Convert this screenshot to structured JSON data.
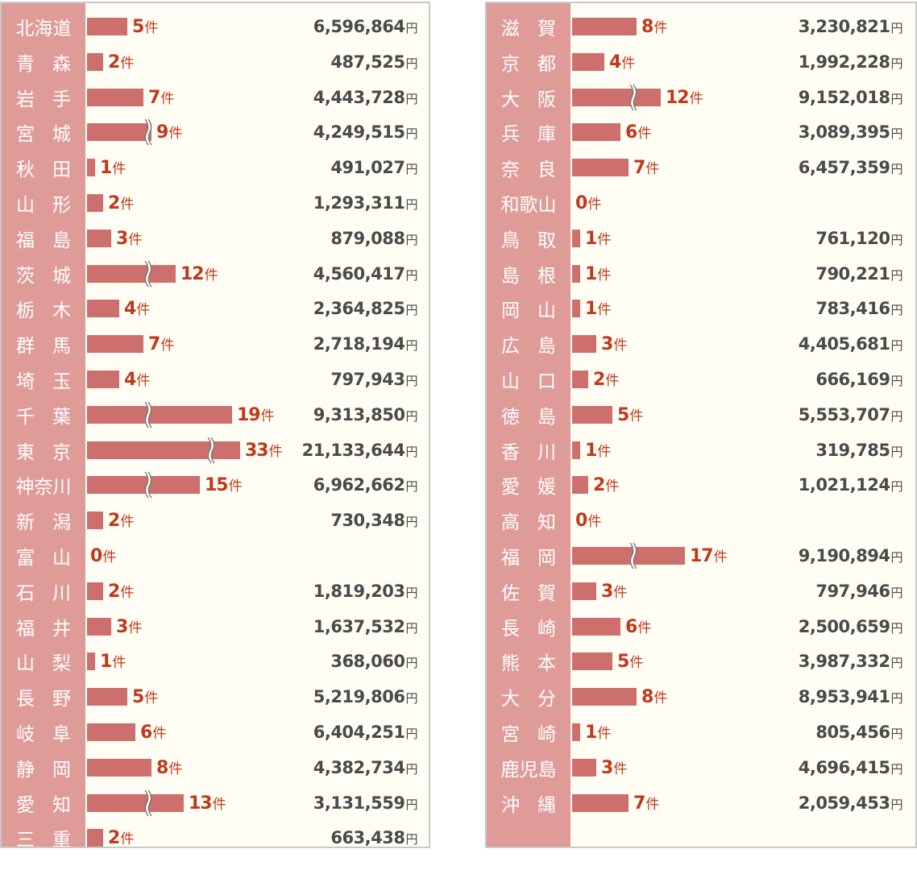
{
  "chart_data": {
    "type": "bar",
    "title": "",
    "count_unit": "件",
    "amount_unit": "円",
    "axis_break_marker": "≈",
    "panels": [
      {
        "rows": [
          {
            "pref": "北海道",
            "count": 5,
            "amount": "6,596,864",
            "broken": false
          },
          {
            "pref": "青森",
            "count": 2,
            "amount": "487,525",
            "broken": false
          },
          {
            "pref": "岩手",
            "count": 7,
            "amount": "4,443,728",
            "broken": false
          },
          {
            "pref": "宮城",
            "count": 9,
            "amount": "4,249,515",
            "broken": true
          },
          {
            "pref": "秋田",
            "count": 1,
            "amount": "491,027",
            "broken": false
          },
          {
            "pref": "山形",
            "count": 2,
            "amount": "1,293,311",
            "broken": false
          },
          {
            "pref": "福島",
            "count": 3,
            "amount": "879,088",
            "broken": false
          },
          {
            "pref": "茨城",
            "count": 12,
            "amount": "4,560,417",
            "broken": true
          },
          {
            "pref": "栃木",
            "count": 4,
            "amount": "2,364,825",
            "broken": false
          },
          {
            "pref": "群馬",
            "count": 7,
            "amount": "2,718,194",
            "broken": false
          },
          {
            "pref": "埼玉",
            "count": 4,
            "amount": "797,943",
            "broken": false
          },
          {
            "pref": "千葉",
            "count": 19,
            "amount": "9,313,850",
            "broken": true
          },
          {
            "pref": "東京",
            "count": 33,
            "amount": "21,133,644",
            "broken": true
          },
          {
            "pref": "神奈川",
            "count": 15,
            "amount": "6,962,662",
            "broken": true
          },
          {
            "pref": "新潟",
            "count": 2,
            "amount": "730,348",
            "broken": false
          },
          {
            "pref": "富山",
            "count": 0,
            "amount": "",
            "broken": false
          },
          {
            "pref": "石川",
            "count": 2,
            "amount": "1,819,203",
            "broken": false
          },
          {
            "pref": "福井",
            "count": 3,
            "amount": "1,637,532",
            "broken": false
          },
          {
            "pref": "山梨",
            "count": 1,
            "amount": "368,060",
            "broken": false
          },
          {
            "pref": "長野",
            "count": 5,
            "amount": "5,219,806",
            "broken": false
          },
          {
            "pref": "岐阜",
            "count": 6,
            "amount": "6,404,251",
            "broken": false
          },
          {
            "pref": "静岡",
            "count": 8,
            "amount": "4,382,734",
            "broken": false
          },
          {
            "pref": "愛知",
            "count": 13,
            "amount": "3,131,559",
            "broken": true
          },
          {
            "pref": "三重",
            "count": 2,
            "amount": "663,438",
            "broken": false
          }
        ]
      },
      {
        "rows": [
          {
            "pref": "滋賀",
            "count": 8,
            "amount": "3,230,821",
            "broken": false
          },
          {
            "pref": "京都",
            "count": 4,
            "amount": "1,992,228",
            "broken": false
          },
          {
            "pref": "大阪",
            "count": 12,
            "amount": "9,152,018",
            "broken": true
          },
          {
            "pref": "兵庫",
            "count": 6,
            "amount": "3,089,395",
            "broken": false
          },
          {
            "pref": "奈良",
            "count": 7,
            "amount": "6,457,359",
            "broken": false
          },
          {
            "pref": "和歌山",
            "count": 0,
            "amount": "",
            "broken": false
          },
          {
            "pref": "鳥取",
            "count": 1,
            "amount": "761,120",
            "broken": false
          },
          {
            "pref": "島根",
            "count": 1,
            "amount": "790,221",
            "broken": false
          },
          {
            "pref": "岡山",
            "count": 1,
            "amount": "783,416",
            "broken": false
          },
          {
            "pref": "広島",
            "count": 3,
            "amount": "4,405,681",
            "broken": false
          },
          {
            "pref": "山口",
            "count": 2,
            "amount": "666,169",
            "broken": false
          },
          {
            "pref": "徳島",
            "count": 5,
            "amount": "5,553,707",
            "broken": false
          },
          {
            "pref": "香川",
            "count": 1,
            "amount": "319,785",
            "broken": false
          },
          {
            "pref": "愛媛",
            "count": 2,
            "amount": "1,021,124",
            "broken": false
          },
          {
            "pref": "高知",
            "count": 0,
            "amount": "",
            "broken": false
          },
          {
            "pref": "福岡",
            "count": 17,
            "amount": "9,190,894",
            "broken": true
          },
          {
            "pref": "佐賀",
            "count": 3,
            "amount": "797,946",
            "broken": false
          },
          {
            "pref": "長崎",
            "count": 6,
            "amount": "2,500,659",
            "broken": false
          },
          {
            "pref": "熊本",
            "count": 5,
            "amount": "3,987,332",
            "broken": false
          },
          {
            "pref": "大分",
            "count": 8,
            "amount": "8,953,941",
            "broken": false
          },
          {
            "pref": "宮崎",
            "count": 1,
            "amount": "805,456",
            "broken": false
          },
          {
            "pref": "鹿児島",
            "count": 3,
            "amount": "4,696,415",
            "broken": false
          },
          {
            "pref": "沖縄",
            "count": 7,
            "amount": "2,059,453",
            "broken": false
          }
        ]
      }
    ]
  },
  "colors": {
    "label_band": "#df9b98",
    "bar": "#cc6f6d",
    "count_text": "#c0391c",
    "amount_text": "#4a4a4a",
    "panel_bg": "#fffdf4",
    "panel_border": "#c9c9c9"
  }
}
